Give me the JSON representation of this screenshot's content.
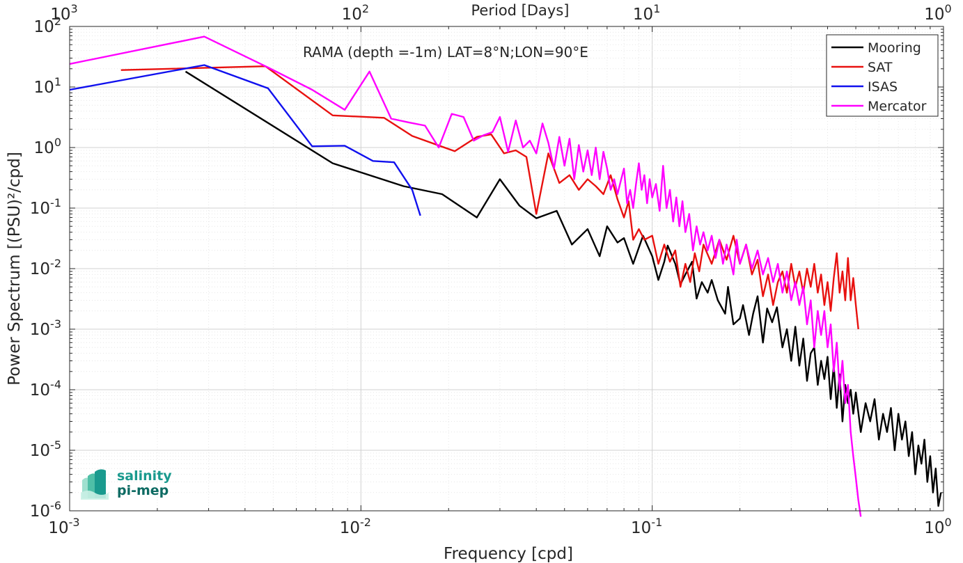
{
  "chart_data": {
    "type": "line",
    "title": "RAMA (depth =-1m) LAT=8°N;LON=90°E",
    "xlabel": "Frequency [cpd]",
    "ylabel": "Power Spectrum [(PSU)²/cpd]",
    "x2label": "Period [Days]",
    "xscale": "log",
    "yscale": "log",
    "xlim": [
      0.001,
      1
    ],
    "ylim": [
      1e-06,
      100
    ],
    "x_ticks": [
      "10^-3",
      "10^-2",
      "10^-1",
      "10^0"
    ],
    "x2_ticks": [
      "10^3",
      "10^2",
      "10^1",
      "10^0"
    ],
    "y_ticks": [
      "10^-6",
      "10^-5",
      "10^-4",
      "10^-3",
      "10^-2",
      "10^-1",
      "10^0",
      "10^1",
      "10^2"
    ],
    "grid": true,
    "legend_position": "top-right",
    "series": [
      {
        "name": "Mooring",
        "color": "#000000",
        "points": [
          [
            0.0025,
            18
          ],
          [
            0.008,
            0.55
          ],
          [
            0.014,
            0.23
          ],
          [
            0.019,
            0.17
          ],
          [
            0.025,
            0.07
          ],
          [
            0.03,
            0.3
          ],
          [
            0.035,
            0.11
          ],
          [
            0.04,
            0.068
          ],
          [
            0.047,
            0.09
          ],
          [
            0.053,
            0.025
          ],
          [
            0.06,
            0.045
          ],
          [
            0.066,
            0.016
          ],
          [
            0.07,
            0.05
          ],
          [
            0.076,
            0.027
          ],
          [
            0.08,
            0.032
          ],
          [
            0.086,
            0.012
          ],
          [
            0.093,
            0.035
          ],
          [
            0.1,
            0.016
          ],
          [
            0.105,
            0.0065
          ],
          [
            0.11,
            0.013
          ],
          [
            0.113,
            0.024
          ],
          [
            0.12,
            0.012
          ],
          [
            0.125,
            0.0055
          ],
          [
            0.13,
            0.008
          ],
          [
            0.137,
            0.013
          ],
          [
            0.142,
            0.0032
          ],
          [
            0.148,
            0.006
          ],
          [
            0.155,
            0.004
          ],
          [
            0.16,
            0.0065
          ],
          [
            0.168,
            0.003
          ],
          [
            0.178,
            0.0018
          ],
          [
            0.182,
            0.005
          ],
          [
            0.19,
            0.0012
          ],
          [
            0.2,
            0.0015
          ],
          [
            0.205,
            0.0025
          ],
          [
            0.215,
            0.0008
          ],
          [
            0.222,
            0.0018
          ],
          [
            0.23,
            0.0035
          ],
          [
            0.24,
            0.0006
          ],
          [
            0.248,
            0.0022
          ],
          [
            0.258,
            0.0013
          ],
          [
            0.268,
            0.0023
          ],
          [
            0.28,
            0.0005
          ],
          [
            0.29,
            0.001
          ],
          [
            0.3,
            0.0003
          ],
          [
            0.31,
            0.0011
          ],
          [
            0.32,
            0.00025
          ],
          [
            0.33,
            0.0007
          ],
          [
            0.34,
            0.00014
          ],
          [
            0.35,
            0.0004
          ],
          [
            0.36,
            0.0005
          ],
          [
            0.37,
            0.00012
          ],
          [
            0.38,
            0.0003
          ],
          [
            0.39,
            0.00015
          ],
          [
            0.4,
            0.00035
          ],
          [
            0.41,
            7e-05
          ],
          [
            0.42,
            0.00025
          ],
          [
            0.43,
            5e-05
          ],
          [
            0.44,
            0.00018
          ],
          [
            0.45,
            3e-05
          ],
          [
            0.46,
            0.00012
          ],
          [
            0.47,
            6e-05
          ],
          [
            0.48,
            0.0001
          ],
          [
            0.49,
            4e-05
          ],
          [
            0.5,
            9e-05
          ],
          [
            0.52,
            2e-05
          ],
          [
            0.54,
            6e-05
          ],
          [
            0.56,
            3e-05
          ],
          [
            0.58,
            7e-05
          ],
          [
            0.6,
            1.5e-05
          ],
          [
            0.62,
            4e-05
          ],
          [
            0.64,
            2e-05
          ],
          [
            0.66,
            5e-05
          ],
          [
            0.68,
            1e-05
          ],
          [
            0.7,
            4e-05
          ],
          [
            0.72,
            1.5e-05
          ],
          [
            0.74,
            3e-05
          ],
          [
            0.76,
            8e-06
          ],
          [
            0.78,
            2e-05
          ],
          [
            0.8,
            4e-06
          ],
          [
            0.82,
            1.2e-05
          ],
          [
            0.84,
            6e-06
          ],
          [
            0.86,
            1.5e-05
          ],
          [
            0.88,
            3e-06
          ],
          [
            0.9,
            8e-06
          ],
          [
            0.92,
            2e-06
          ],
          [
            0.94,
            5e-06
          ],
          [
            0.96,
            1.2e-06
          ],
          [
            0.98,
            2e-06
          ]
        ]
      },
      {
        "name": "SAT",
        "color": "#e8110f",
        "points": [
          [
            0.0015,
            19
          ],
          [
            0.0047,
            22
          ],
          [
            0.008,
            3.4
          ],
          [
            0.012,
            3.1
          ],
          [
            0.015,
            1.55
          ],
          [
            0.021,
            0.87
          ],
          [
            0.025,
            1.5
          ],
          [
            0.028,
            1.65
          ],
          [
            0.031,
            0.8
          ],
          [
            0.034,
            0.9
          ],
          [
            0.037,
            0.7
          ],
          [
            0.04,
            0.08
          ],
          [
            0.044,
            0.8
          ],
          [
            0.048,
            0.26
          ],
          [
            0.052,
            0.35
          ],
          [
            0.056,
            0.2
          ],
          [
            0.06,
            0.3
          ],
          [
            0.064,
            0.23
          ],
          [
            0.068,
            0.17
          ],
          [
            0.072,
            0.35
          ],
          [
            0.076,
            0.14
          ],
          [
            0.08,
            0.07
          ],
          [
            0.083,
            0.13
          ],
          [
            0.086,
            0.03
          ],
          [
            0.09,
            0.045
          ],
          [
            0.094,
            0.03
          ],
          [
            0.1,
            0.035
          ],
          [
            0.105,
            0.012
          ],
          [
            0.11,
            0.025
          ],
          [
            0.115,
            0.013
          ],
          [
            0.12,
            0.02
          ],
          [
            0.125,
            0.005
          ],
          [
            0.13,
            0.012
          ],
          [
            0.135,
            0.006
          ],
          [
            0.14,
            0.018
          ],
          [
            0.145,
            0.009
          ],
          [
            0.15,
            0.025
          ],
          [
            0.16,
            0.012
          ],
          [
            0.17,
            0.03
          ],
          [
            0.18,
            0.014
          ],
          [
            0.19,
            0.035
          ],
          [
            0.2,
            0.012
          ],
          [
            0.21,
            0.025
          ],
          [
            0.22,
            0.008
          ],
          [
            0.23,
            0.014
          ],
          [
            0.24,
            0.0035
          ],
          [
            0.25,
            0.008
          ],
          [
            0.26,
            0.0025
          ],
          [
            0.27,
            0.006
          ],
          [
            0.28,
            0.009
          ],
          [
            0.29,
            0.004
          ],
          [
            0.3,
            0.012
          ],
          [
            0.31,
            0.005
          ],
          [
            0.32,
            0.009
          ],
          [
            0.33,
            0.004
          ],
          [
            0.34,
            0.01
          ],
          [
            0.35,
            0.005
          ],
          [
            0.36,
            0.012
          ],
          [
            0.37,
            0.004
          ],
          [
            0.38,
            0.008
          ],
          [
            0.39,
            0.0025
          ],
          [
            0.4,
            0.006
          ],
          [
            0.41,
            0.002
          ],
          [
            0.42,
            0.007
          ],
          [
            0.43,
            0.018
          ],
          [
            0.44,
            0.004
          ],
          [
            0.45,
            0.009
          ],
          [
            0.46,
            0.003
          ],
          [
            0.47,
            0.015
          ],
          [
            0.48,
            0.003
          ],
          [
            0.49,
            0.007
          ],
          [
            0.5,
            0.0025
          ],
          [
            0.51,
            0.001
          ]
        ]
      },
      {
        "name": "ISAS",
        "color": "#1010ee",
        "points": [
          [
            0.001,
            9
          ],
          [
            0.0029,
            23
          ],
          [
            0.0048,
            9.5
          ],
          [
            0.0068,
            1.05
          ],
          [
            0.0088,
            1.07
          ],
          [
            0.011,
            0.6
          ],
          [
            0.013,
            0.57
          ],
          [
            0.015,
            0.2
          ],
          [
            0.016,
            0.075
          ]
        ]
      },
      {
        "name": "Mercator",
        "color": "#ff00ff",
        "points": [
          [
            0.001,
            24
          ],
          [
            0.0029,
            68
          ],
          [
            0.0048,
            21
          ],
          [
            0.0068,
            9
          ],
          [
            0.0088,
            4.2
          ],
          [
            0.0107,
            18
          ],
          [
            0.0127,
            3
          ],
          [
            0.0146,
            2.6
          ],
          [
            0.0166,
            2.3
          ],
          [
            0.0185,
            1
          ],
          [
            0.0205,
            3.6
          ],
          [
            0.0225,
            3.2
          ],
          [
            0.0244,
            1.3
          ],
          [
            0.0264,
            1.6
          ],
          [
            0.0283,
            1.8
          ],
          [
            0.03,
            3.2
          ],
          [
            0.032,
            0.85
          ],
          [
            0.034,
            2.8
          ],
          [
            0.036,
            1
          ],
          [
            0.038,
            1.3
          ],
          [
            0.04,
            0.8
          ],
          [
            0.042,
            2.5
          ],
          [
            0.044,
            1.2
          ],
          [
            0.046,
            0.45
          ],
          [
            0.048,
            1.5
          ],
          [
            0.05,
            0.5
          ],
          [
            0.052,
            1.4
          ],
          [
            0.054,
            0.3
          ],
          [
            0.056,
            1.1
          ],
          [
            0.058,
            0.4
          ],
          [
            0.06,
            0.9
          ],
          [
            0.062,
            0.35
          ],
          [
            0.064,
            1
          ],
          [
            0.066,
            0.3
          ],
          [
            0.068,
            0.85
          ],
          [
            0.07,
            0.45
          ],
          [
            0.072,
            0.2
          ],
          [
            0.074,
            0.3
          ],
          [
            0.076,
            0.17
          ],
          [
            0.078,
            0.28
          ],
          [
            0.08,
            0.45
          ],
          [
            0.082,
            0.12
          ],
          [
            0.084,
            0.2
          ],
          [
            0.086,
            0.1
          ],
          [
            0.088,
            0.25
          ],
          [
            0.09,
            0.55
          ],
          [
            0.092,
            0.2
          ],
          [
            0.094,
            0.35
          ],
          [
            0.096,
            0.12
          ],
          [
            0.098,
            0.3
          ],
          [
            0.1,
            0.15
          ],
          [
            0.103,
            0.25
          ],
          [
            0.106,
            0.09
          ],
          [
            0.109,
            0.5
          ],
          [
            0.112,
            0.1
          ],
          [
            0.115,
            0.2
          ],
          [
            0.118,
            0.06
          ],
          [
            0.121,
            0.15
          ],
          [
            0.124,
            0.05
          ],
          [
            0.127,
            0.13
          ],
          [
            0.13,
            0.04
          ],
          [
            0.134,
            0.08
          ],
          [
            0.138,
            0.02
          ],
          [
            0.142,
            0.05
          ],
          [
            0.146,
            0.025
          ],
          [
            0.15,
            0.04
          ],
          [
            0.155,
            0.02
          ],
          [
            0.16,
            0.035
          ],
          [
            0.165,
            0.015
          ],
          [
            0.17,
            0.03
          ],
          [
            0.175,
            0.012
          ],
          [
            0.18,
            0.025
          ],
          [
            0.185,
            0.015
          ],
          [
            0.19,
            0.008
          ],
          [
            0.195,
            0.03
          ],
          [
            0.2,
            0.012
          ],
          [
            0.21,
            0.025
          ],
          [
            0.22,
            0.01
          ],
          [
            0.23,
            0.02
          ],
          [
            0.24,
            0.008
          ],
          [
            0.25,
            0.015
          ],
          [
            0.26,
            0.006
          ],
          [
            0.27,
            0.012
          ],
          [
            0.28,
            0.004
          ],
          [
            0.29,
            0.009
          ],
          [
            0.3,
            0.003
          ],
          [
            0.31,
            0.006
          ],
          [
            0.32,
            0.0025
          ],
          [
            0.33,
            0.005
          ],
          [
            0.34,
            0.0012
          ],
          [
            0.35,
            0.003
          ],
          [
            0.36,
            0.0005
          ],
          [
            0.37,
            0.002
          ],
          [
            0.38,
            0.0008
          ],
          [
            0.39,
            0.002
          ],
          [
            0.4,
            0.0005
          ],
          [
            0.41,
            0.0012
          ],
          [
            0.42,
            0.0002
          ],
          [
            0.43,
            0.0006
          ],
          [
            0.44,
            0.0001
          ],
          [
            0.45,
            0.0003
          ],
          [
            0.46,
            6e-05
          ],
          [
            0.47,
            0.00012
          ],
          [
            0.48,
            2e-05
          ],
          [
            0.49,
            8e-06
          ],
          [
            0.5,
            3.5e-06
          ],
          [
            0.51,
            1.5e-06
          ],
          [
            0.52,
            8e-07
          ]
        ]
      }
    ]
  },
  "logo": {
    "line1": "salinity",
    "line2": "pi-mep"
  }
}
